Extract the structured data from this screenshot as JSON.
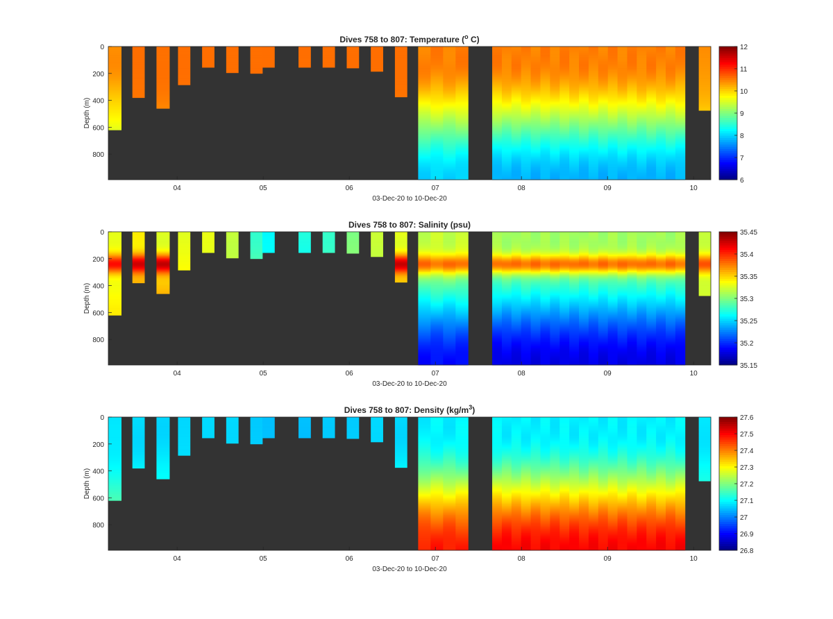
{
  "figure": {
    "colors": {
      "background_fill": "#333333",
      "axis_color": "#262626"
    },
    "x_tick_labels": [
      "04",
      "05",
      "06",
      "07",
      "08",
      "09",
      "10"
    ],
    "x_label": "03-Dec-20 to 10-Dec-20",
    "y_label": "Depth (m)",
    "y_tick_labels": [
      "0",
      "200",
      "400",
      "600",
      "800"
    ]
  },
  "chart_data": [
    {
      "type": "heatmap",
      "title_prefix": "Dives 758 to 807: Temperature (",
      "title_sup": "o",
      "title_suffix": " C)",
      "xlabel": "03-Dec-20 to 10-Dec-20",
      "ylabel": "Depth (m)",
      "x_range": [
        3.2,
        10.2
      ],
      "ylim": [
        0,
        990
      ],
      "y_reversed": true,
      "x_ticks": [
        4,
        5,
        6,
        7,
        8,
        9,
        10
      ],
      "y_ticks": [
        0,
        200,
        400,
        600,
        800
      ],
      "colorbar": {
        "min": 6,
        "max": 12,
        "ticks": [
          "6",
          "7",
          "8",
          "9",
          "10",
          "11",
          "12"
        ],
        "colormap": "jet"
      },
      "profiles": [
        {
          "start": 3.2,
          "end": 3.35,
          "max_depth": 620,
          "surface": 10.4,
          "deep": 9.0
        },
        {
          "start": 3.48,
          "end": 3.62,
          "max_depth": 380,
          "surface": 10.6,
          "deep": 10.4
        },
        {
          "start": 3.76,
          "end": 3.91,
          "max_depth": 460,
          "surface": 10.6,
          "deep": 10.2
        },
        {
          "start": 4.01,
          "end": 4.15,
          "max_depth": 285,
          "surface": 10.6,
          "deep": 10.5
        },
        {
          "start": 4.29,
          "end": 4.43,
          "max_depth": 155,
          "surface": 10.6,
          "deep": 10.5
        },
        {
          "start": 4.57,
          "end": 4.71,
          "max_depth": 195,
          "surface": 10.6,
          "deep": 10.5
        },
        {
          "start": 4.85,
          "end": 4.99,
          "max_depth": 200,
          "surface": 10.6,
          "deep": 10.5
        },
        {
          "start": 4.99,
          "end": 5.13,
          "max_depth": 155,
          "surface": 10.6,
          "deep": 10.5
        },
        {
          "start": 5.41,
          "end": 5.55,
          "max_depth": 155,
          "surface": 10.6,
          "deep": 10.5
        },
        {
          "start": 5.69,
          "end": 5.83,
          "max_depth": 155,
          "surface": 10.6,
          "deep": 10.5
        },
        {
          "start": 5.97,
          "end": 6.11,
          "max_depth": 160,
          "surface": 10.6,
          "deep": 10.5
        },
        {
          "start": 6.25,
          "end": 6.39,
          "max_depth": 185,
          "surface": 10.6,
          "deep": 10.5
        },
        {
          "start": 6.53,
          "end": 6.67,
          "max_depth": 375,
          "surface": 10.6,
          "deep": 10.4
        },
        {
          "start": 6.8,
          "end": 7.38,
          "max_depth": 990,
          "surface": 10.5,
          "deep": 8.0,
          "n": 4
        },
        {
          "start": 7.66,
          "end": 9.9,
          "max_depth": 990,
          "surface": 10.5,
          "deep": 7.8,
          "n": 20
        },
        {
          "start": 10.06,
          "end": 10.2,
          "max_depth": 475,
          "surface": 10.4,
          "deep": 9.4
        }
      ]
    },
    {
      "type": "heatmap",
      "title_prefix": "Dives 758 to 807: Salinity (psu)",
      "title_sup": "",
      "title_suffix": "",
      "xlabel": "03-Dec-20 to 10-Dec-20",
      "ylabel": "Depth (m)",
      "x_range": [
        3.2,
        10.2
      ],
      "ylim": [
        0,
        990
      ],
      "y_reversed": true,
      "x_ticks": [
        4,
        5,
        6,
        7,
        8,
        9,
        10
      ],
      "y_ticks": [
        0,
        200,
        400,
        600,
        800
      ],
      "colorbar": {
        "min": 35.15,
        "max": 35.45,
        "ticks": [
          "35.15",
          "35.2",
          "35.25",
          "35.3",
          "35.35",
          "35.4",
          "35.45"
        ],
        "colormap": "jet"
      },
      "profiles": [
        {
          "start": 3.2,
          "end": 3.35,
          "max_depth": 620,
          "surface": 35.33,
          "deep": 35.35,
          "peak": 35.41
        },
        {
          "start": 3.48,
          "end": 3.62,
          "max_depth": 380,
          "surface": 35.34,
          "deep": 35.42,
          "peak": 35.43
        },
        {
          "start": 3.76,
          "end": 3.91,
          "max_depth": 460,
          "surface": 35.33,
          "deep": 35.42,
          "peak": 35.43
        },
        {
          "start": 4.01,
          "end": 4.15,
          "max_depth": 285,
          "surface": 35.33,
          "deep": 35.4
        },
        {
          "start": 4.29,
          "end": 4.43,
          "max_depth": 155,
          "surface": 35.33,
          "deep": 35.36
        },
        {
          "start": 4.57,
          "end": 4.71,
          "max_depth": 195,
          "surface": 35.32,
          "deep": 35.36
        },
        {
          "start": 4.85,
          "end": 4.99,
          "max_depth": 200,
          "surface": 35.28,
          "deep": 35.35
        },
        {
          "start": 4.99,
          "end": 5.13,
          "max_depth": 155,
          "surface": 35.26,
          "deep": 35.33
        },
        {
          "start": 5.41,
          "end": 5.55,
          "max_depth": 155,
          "surface": 35.27,
          "deep": 35.34
        },
        {
          "start": 5.69,
          "end": 5.83,
          "max_depth": 155,
          "surface": 35.28,
          "deep": 35.34
        },
        {
          "start": 5.97,
          "end": 6.11,
          "max_depth": 160,
          "surface": 35.3,
          "deep": 35.35
        },
        {
          "start": 6.25,
          "end": 6.39,
          "max_depth": 185,
          "surface": 35.32,
          "deep": 35.36
        },
        {
          "start": 6.53,
          "end": 6.67,
          "max_depth": 375,
          "surface": 35.33,
          "deep": 35.42,
          "peak": 35.43
        },
        {
          "start": 6.8,
          "end": 7.38,
          "max_depth": 990,
          "surface": 35.32,
          "deep": 35.19,
          "peak": 35.38,
          "n": 4
        },
        {
          "start": 7.66,
          "end": 9.9,
          "max_depth": 990,
          "surface": 35.31,
          "deep": 35.18,
          "peak": 35.38,
          "n": 20
        },
        {
          "start": 10.06,
          "end": 10.2,
          "max_depth": 475,
          "surface": 35.32,
          "deep": 35.33,
          "peak": 35.39
        }
      ]
    },
    {
      "type": "heatmap",
      "title_prefix": "Dives 758 to 807: Density (kg/m",
      "title_sup": "3",
      "title_suffix": ")",
      "xlabel": "03-Dec-20 to 10-Dec-20",
      "ylabel": "Depth (m)",
      "x_range": [
        3.2,
        10.2
      ],
      "ylim": [
        0,
        990
      ],
      "y_reversed": true,
      "x_ticks": [
        4,
        5,
        6,
        7,
        8,
        9,
        10
      ],
      "y_ticks": [
        0,
        200,
        400,
        600,
        800
      ],
      "colorbar": {
        "min": 26.8,
        "max": 27.6,
        "ticks": [
          "26.8",
          "26.9",
          "27",
          "27.1",
          "27.2",
          "27.3",
          "27.4",
          "27.5",
          "27.6"
        ],
        "colormap": "jet"
      },
      "profiles": [
        {
          "start": 3.2,
          "end": 3.35,
          "max_depth": 620,
          "surface": 27.08,
          "deep": 27.2
        },
        {
          "start": 3.48,
          "end": 3.62,
          "max_depth": 380,
          "surface": 27.07,
          "deep": 27.16
        },
        {
          "start": 3.76,
          "end": 3.91,
          "max_depth": 460,
          "surface": 27.07,
          "deep": 27.17
        },
        {
          "start": 4.01,
          "end": 4.15,
          "max_depth": 285,
          "surface": 27.07,
          "deep": 27.12
        },
        {
          "start": 4.29,
          "end": 4.43,
          "max_depth": 155,
          "surface": 27.07,
          "deep": 27.09
        },
        {
          "start": 4.57,
          "end": 4.71,
          "max_depth": 195,
          "surface": 27.07,
          "deep": 27.09
        },
        {
          "start": 4.85,
          "end": 4.99,
          "max_depth": 200,
          "surface": 27.06,
          "deep": 27.09
        },
        {
          "start": 4.99,
          "end": 5.13,
          "max_depth": 155,
          "surface": 27.05,
          "deep": 27.08
        },
        {
          "start": 5.41,
          "end": 5.55,
          "max_depth": 155,
          "surface": 27.05,
          "deep": 27.08
        },
        {
          "start": 5.69,
          "end": 5.83,
          "max_depth": 155,
          "surface": 27.06,
          "deep": 27.08
        },
        {
          "start": 5.97,
          "end": 6.11,
          "max_depth": 160,
          "surface": 27.06,
          "deep": 27.09
        },
        {
          "start": 6.25,
          "end": 6.39,
          "max_depth": 185,
          "surface": 27.07,
          "deep": 27.09
        },
        {
          "start": 6.53,
          "end": 6.67,
          "max_depth": 375,
          "surface": 27.07,
          "deep": 27.16
        },
        {
          "start": 6.8,
          "end": 7.38,
          "max_depth": 990,
          "surface": 27.09,
          "deep": 27.48,
          "n": 4
        },
        {
          "start": 7.66,
          "end": 9.9,
          "max_depth": 990,
          "surface": 27.09,
          "deep": 27.5,
          "n": 20
        },
        {
          "start": 10.06,
          "end": 10.2,
          "max_depth": 475,
          "surface": 27.08,
          "deep": 27.18
        }
      ]
    }
  ]
}
